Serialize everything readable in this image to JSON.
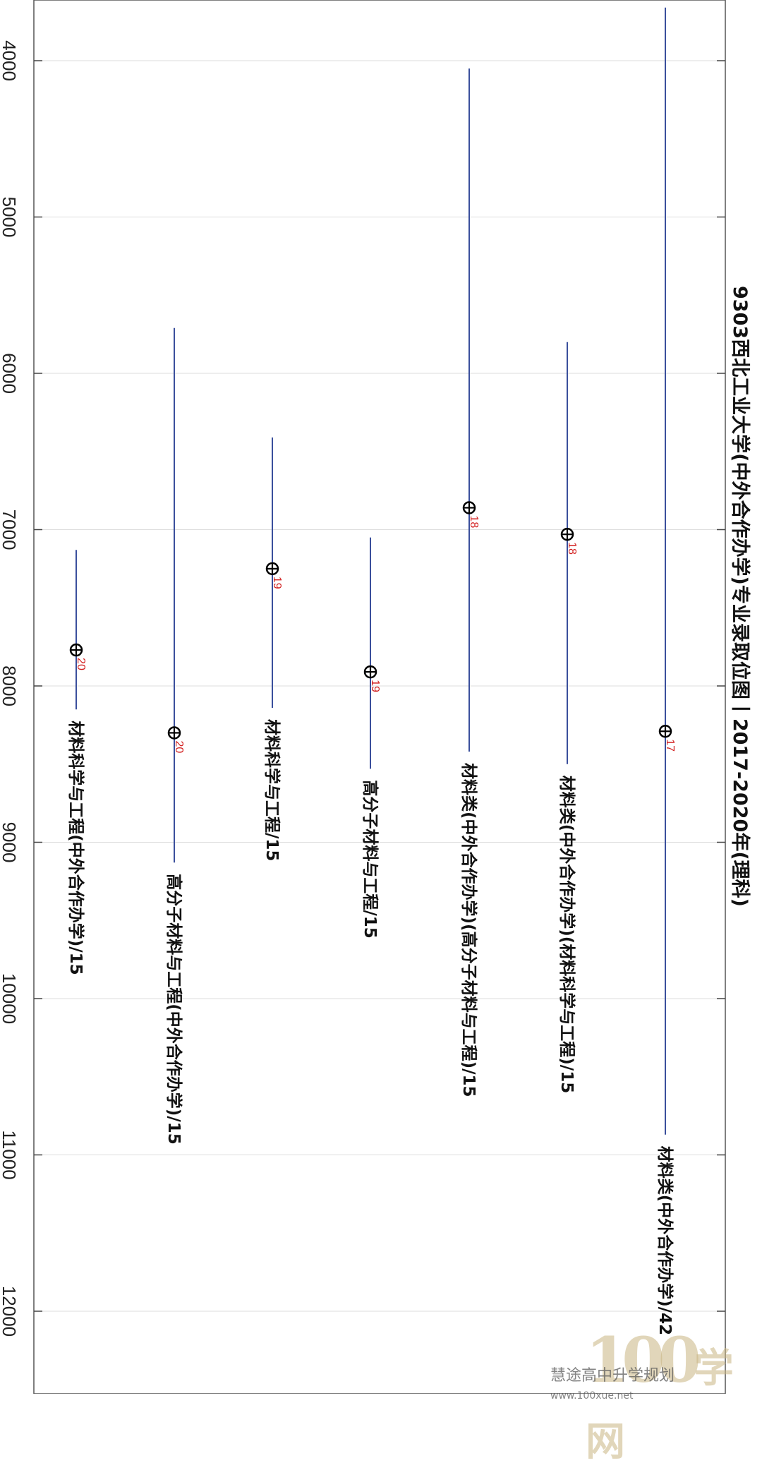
{
  "chart_data": {
    "type": "range-point",
    "orientation": "rotated-90-clockwise",
    "title": "9303西北工业大学(中外合作办学)专业录取位图丨2017-2020年(理科)",
    "value_axis": {
      "ticks": [
        4000,
        5000,
        6000,
        7000,
        8000,
        9000,
        10000,
        11000,
        12000
      ],
      "range": [
        3620,
        12540
      ],
      "grid": true
    },
    "colors": {
      "range_line": "#3a4f9c",
      "count_label": "#d21e1e",
      "marker": "#000000",
      "grid": "#dddddd"
    },
    "series": [
      {
        "label": "材料科学与工程(中外合作办学)/15",
        "min": 7130,
        "max": 8150,
        "point": 7770,
        "count": "20"
      },
      {
        "label": "高分子材料与工程(中外合作办学)/15",
        "min": 5710,
        "max": 9130,
        "point": 8300,
        "count": "20"
      },
      {
        "label": "材料科学与工程/15",
        "min": 6410,
        "max": 8140,
        "point": 7250,
        "count": "19"
      },
      {
        "label": "高分子材料与工程/15",
        "min": 7050,
        "max": 8530,
        "point": 7910,
        "count": "19"
      },
      {
        "label": "材料类(中外合作办学)(高分子材料与工程)/15",
        "min": 4050,
        "max": 8420,
        "point": 6860,
        "count": "18"
      },
      {
        "label": "材料类(中外合作办学)(材料科学与工程)/15",
        "min": 5800,
        "max": 8500,
        "point": 7030,
        "count": "18"
      },
      {
        "label": "材料类(中外合作办学)/42",
        "min": 3660,
        "max": 10870,
        "point": 8290,
        "count": "17"
      }
    ]
  },
  "watermark": {
    "logo_text": "100",
    "brand_text": "学网",
    "caption": "慧途高中升学规划",
    "url": "www.100xue.net"
  }
}
